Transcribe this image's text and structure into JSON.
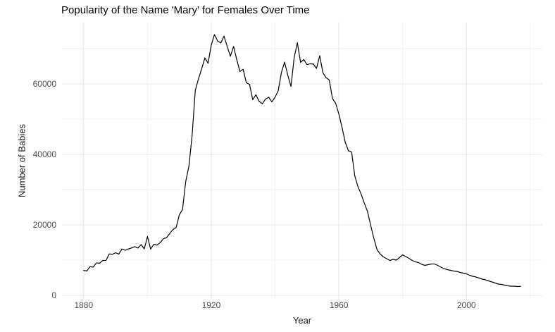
{
  "figure": {
    "title": "Popularity of the Name 'Mary' for Females Over Time",
    "x_axis_title": "Year",
    "y_axis_title": "Number of Babies"
  },
  "chart_data": {
    "type": "line",
    "title": "Popularity of the Name 'Mary' for Females Over Time",
    "xlabel": "Year",
    "ylabel": "Number of Babies",
    "legend_position": "none",
    "grid": true,
    "xlim": [
      1873.2,
      2023.8
    ],
    "ylim": [
      -1200,
      77600
    ],
    "x_major_ticks": [
      1880,
      1920,
      1960,
      2000
    ],
    "x_minor_gridlines": [
      1900,
      1940,
      1980,
      2020
    ],
    "y_major_ticks": [
      0,
      20000,
      40000,
      60000
    ],
    "y_minor_gridlines": [
      10000,
      30000,
      50000,
      70000
    ],
    "line_color": "#000000",
    "grid_major_color": "#e5e5e5",
    "grid_minor_color": "#f2f2f2",
    "tick_label_color": "#4d4d4d",
    "background_color": "#ffffff",
    "series": [
      {
        "name": "Mary (F)",
        "x": [
          1880,
          1881,
          1882,
          1883,
          1884,
          1885,
          1886,
          1887,
          1888,
          1889,
          1890,
          1891,
          1892,
          1893,
          1894,
          1895,
          1896,
          1897,
          1898,
          1899,
          1900,
          1901,
          1902,
          1903,
          1904,
          1905,
          1906,
          1907,
          1908,
          1909,
          1910,
          1911,
          1912,
          1913,
          1914,
          1915,
          1916,
          1917,
          1918,
          1919,
          1920,
          1921,
          1922,
          1923,
          1924,
          1925,
          1926,
          1927,
          1928,
          1929,
          1930,
          1931,
          1932,
          1933,
          1934,
          1935,
          1936,
          1937,
          1938,
          1939,
          1940,
          1941,
          1942,
          1943,
          1944,
          1945,
          1946,
          1947,
          1948,
          1949,
          1950,
          1951,
          1952,
          1953,
          1954,
          1955,
          1956,
          1957,
          1958,
          1959,
          1960,
          1961,
          1962,
          1963,
          1964,
          1965,
          1966,
          1967,
          1968,
          1969,
          1970,
          1971,
          1972,
          1973,
          1974,
          1975,
          1976,
          1977,
          1978,
          1979,
          1980,
          1981,
          1982,
          1983,
          1984,
          1985,
          1986,
          1987,
          1988,
          1989,
          1990,
          1991,
          1992,
          1993,
          1994,
          1995,
          1996,
          1997,
          1998,
          1999,
          2000,
          2001,
          2002,
          2003,
          2004,
          2005,
          2006,
          2007,
          2008,
          2009,
          2010,
          2011,
          2012,
          2013,
          2014,
          2015,
          2016,
          2017
        ],
        "y": [
          7065,
          6919,
          8148,
          8012,
          9217,
          9128,
          9889,
          9888,
          11754,
          11648,
          12078,
          11703,
          13172,
          12784,
          13151,
          13446,
          13811,
          13413,
          14406,
          13172,
          16707,
          13136,
          14486,
          14275,
          14962,
          16067,
          16370,
          17580,
          18666,
          19259,
          22848,
          24390,
          32304,
          36642,
          45345,
          58187,
          61438,
          64281,
          67368,
          65841,
          70980,
          73985,
          72175,
          71635,
          73533,
          70603,
          67830,
          70639,
          66869,
          63512,
          64150,
          60297,
          59869,
          55493,
          56930,
          55065,
          54368,
          55645,
          56215,
          54906,
          56203,
          58037,
          63243,
          66170,
          62466,
          59287,
          67468,
          71687,
          66104,
          66913,
          65486,
          65685,
          65654,
          64370,
          67995,
          63168,
          61753,
          61094,
          55857,
          54474,
          51475,
          47680,
          43476,
          41045,
          40664,
          33919,
          30822,
          28710,
          26142,
          23775,
          19800,
          16100,
          12900,
          11700,
          10900,
          10400,
          9900,
          10200,
          10000,
          10700,
          11500,
          11000,
          10500,
          9900,
          9500,
          9300,
          8800,
          8500,
          8700,
          8900,
          8900,
          8500,
          8000,
          7600,
          7300,
          7100,
          6900,
          6800,
          6500,
          6300,
          6100,
          5700,
          5400,
          5200,
          4900,
          4600,
          4400,
          4100,
          3800,
          3500,
          3200,
          3100,
          2900,
          2700,
          2600,
          2600,
          2500,
          2550
        ]
      }
    ]
  }
}
